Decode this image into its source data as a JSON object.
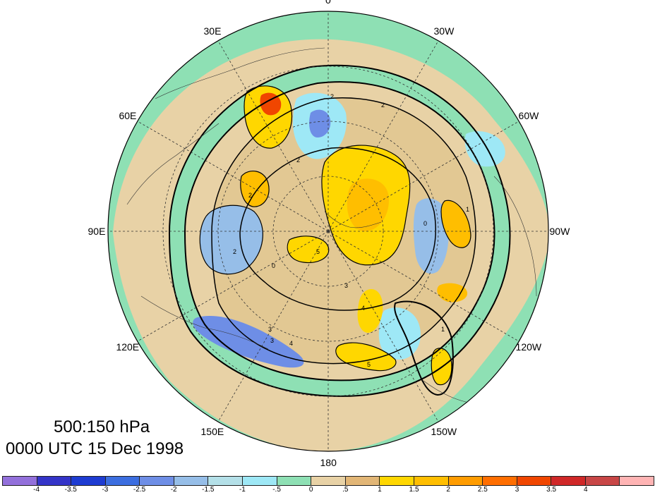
{
  "title": {
    "level": "500:150 hPa",
    "time": "0000 UTC 15 Dec 1998"
  },
  "longitude_labels": [
    {
      "label": "0",
      "angle_deg": 0
    },
    {
      "label": "30W",
      "angle_deg": 30
    },
    {
      "label": "60W",
      "angle_deg": 60
    },
    {
      "label": "90W",
      "angle_deg": 90
    },
    {
      "label": "120W",
      "angle_deg": 120
    },
    {
      "label": "150W",
      "angle_deg": 150
    },
    {
      "label": "180",
      "angle_deg": 180
    },
    {
      "label": "150E",
      "angle_deg": 210
    },
    {
      "label": "120E",
      "angle_deg": 240
    },
    {
      "label": "90E",
      "angle_deg": 270
    },
    {
      "label": "60E",
      "angle_deg": 300
    },
    {
      "label": "30E",
      "angle_deg": 330
    }
  ],
  "colorbar": {
    "colors": [
      "#9370db",
      "#3434c8",
      "#1e3cd2",
      "#3c6ee0",
      "#6e8ee6",
      "#96bee8",
      "#b4e0e8",
      "#9ee8f6",
      "#8ee0b4",
      "#e8d2a6",
      "#e2b676",
      "#ffd700",
      "#ffbe00",
      "#ff9c00",
      "#ff6e00",
      "#f04600",
      "#d02828",
      "#c84646",
      "#ffb4b4"
    ],
    "tick_labels": [
      "-4",
      "-3.5",
      "-3",
      "-2.5",
      "-2",
      "-1.5",
      "-1",
      "-.5",
      "0",
      ".5",
      "1",
      "1.5",
      "2",
      "2.5",
      "3",
      "3.5",
      "4"
    ]
  },
  "contour_labels": [
    "2",
    "2",
    "2",
    "2",
    "2",
    "3",
    "3",
    "3",
    "4",
    "4",
    "5",
    "5",
    "1",
    "1",
    "0",
    "0"
  ],
  "colors": {
    "background_field": "#8ee0b4",
    "ocean_tan": "#e8d2a6",
    "positive_anomaly": "#ffd700",
    "negative_anomaly": "#96bee8"
  }
}
